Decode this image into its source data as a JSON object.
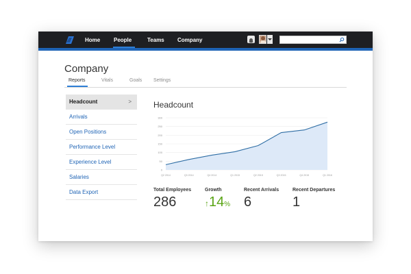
{
  "topbar": {
    "nav": [
      {
        "label": "Home"
      },
      {
        "label": "People"
      },
      {
        "label": "Teams"
      },
      {
        "label": "Company"
      }
    ],
    "active_nav": "People",
    "search": {
      "value": "",
      "placeholder": ""
    }
  },
  "page": {
    "title": "Company",
    "tabs": [
      {
        "label": "Reports"
      },
      {
        "label": "Vitals"
      },
      {
        "label": "Goals"
      },
      {
        "label": "Settings"
      }
    ],
    "active_tab": "Reports"
  },
  "sidebar": {
    "items": [
      {
        "label": "Headcount",
        "active": true
      },
      {
        "label": "Arrivals"
      },
      {
        "label": "Open Positions"
      },
      {
        "label": "Performance Level"
      },
      {
        "label": "Experience Level"
      },
      {
        "label": "Salaries"
      },
      {
        "label": "Data Export"
      }
    ],
    "chevron": ">"
  },
  "chart_data": {
    "type": "area",
    "title": "Headcount",
    "categories": [
      "Q2 2014",
      "Q3 2014",
      "Q4 2014",
      "Q1 2015",
      "Q2 2015",
      "Q3 2015",
      "Q4 2015",
      "Q1 2016"
    ],
    "values": [
      30,
      60,
      85,
      105,
      140,
      215,
      230,
      275
    ],
    "ylim": [
      0,
      300
    ],
    "yticks": [
      0,
      50,
      100,
      150,
      200,
      250,
      300
    ],
    "grid": "horizontal"
  },
  "stats": [
    {
      "label": "Total Employees",
      "value": "286"
    },
    {
      "label": "Growth",
      "arrow": "↑",
      "value": "14",
      "unit": "%"
    },
    {
      "label": "Recent Arrivals",
      "value": "6"
    },
    {
      "label": "Recent Departures",
      "value": "1"
    }
  ],
  "colors": {
    "topbar": "#1e1f22",
    "accent": "#1f64b5",
    "link": "#1f64b5",
    "growth": "#5aa415",
    "chart_line": "#2e6da4",
    "chart_fill": "#dde9f8"
  }
}
